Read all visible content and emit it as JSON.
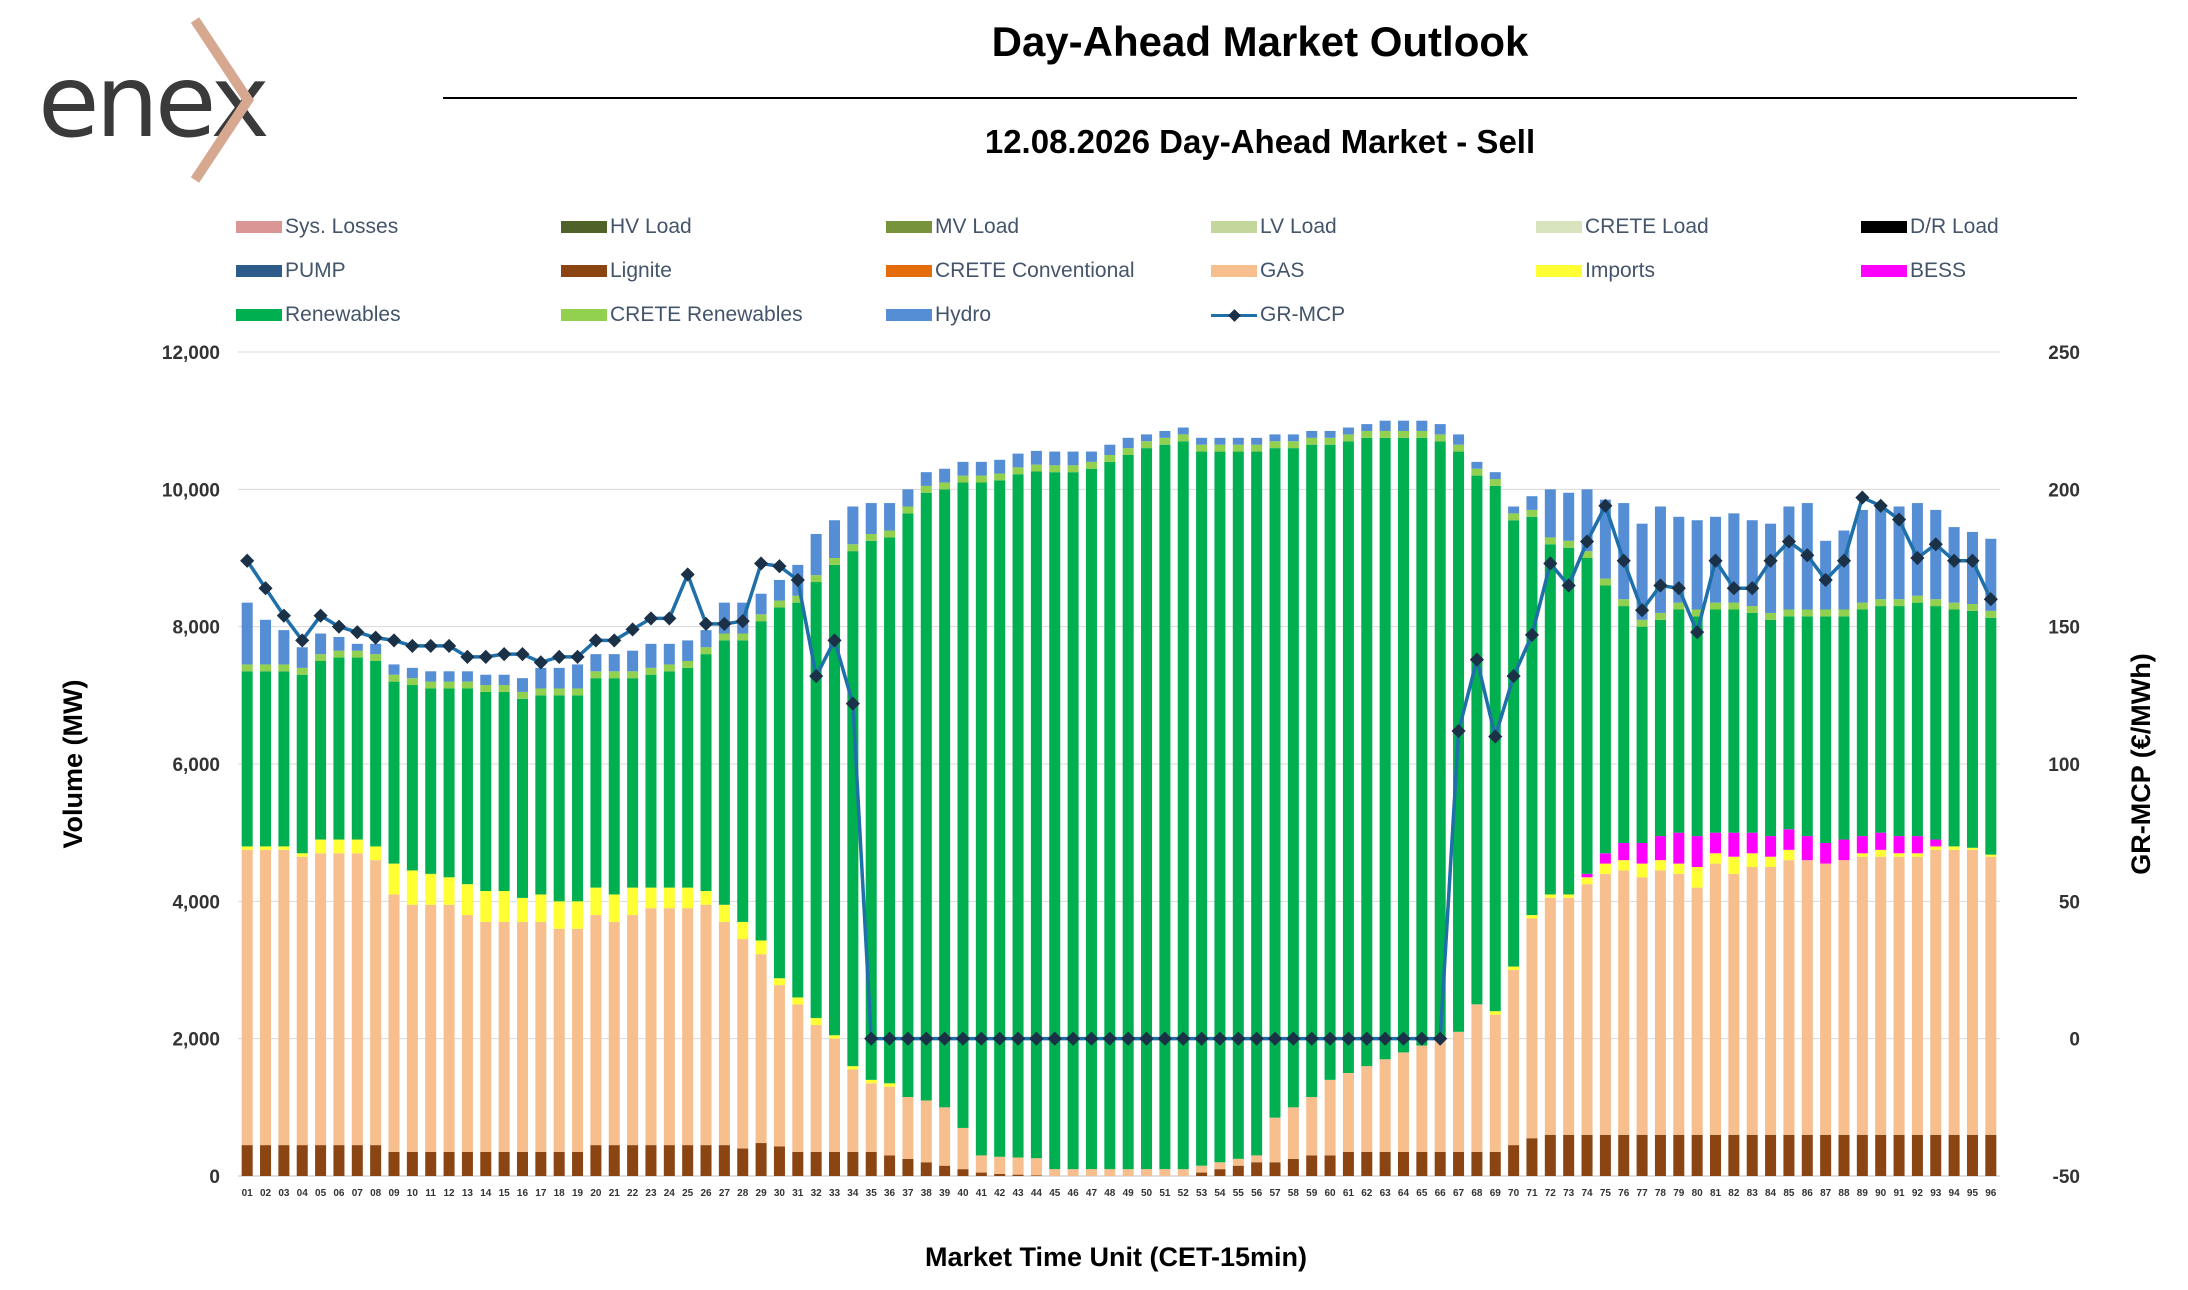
{
  "header": {
    "logo_text": "enex",
    "title": "Day-Ahead Market Outlook",
    "subtitle": "12.08.2026  Day-Ahead Market - Sell"
  },
  "chart_data": {
    "type": "bar",
    "stacked": true,
    "title": "12.08.2026  Day-Ahead Market - Sell",
    "xlabel": "Market Time Unit (CET-15min)",
    "ylabel": "Volume (MW)",
    "y2label": "GR-MCP (€/MWh)",
    "ylim": [
      0,
      12000
    ],
    "y2lim": [
      -50,
      250
    ],
    "yticks": [
      "0",
      "2,000",
      "4,000",
      "6,000",
      "8,000",
      "10,000",
      "12,000"
    ],
    "y2ticks": [
      "-50",
      "0",
      "50",
      "100",
      "150",
      "200",
      "250"
    ],
    "grid": "horizontal",
    "legend_position": "top",
    "categories": [
      "01",
      "02",
      "03",
      "04",
      "05",
      "06",
      "07",
      "08",
      "09",
      "10",
      "11",
      "12",
      "13",
      "14",
      "15",
      "16",
      "17",
      "18",
      "19",
      "20",
      "21",
      "22",
      "23",
      "24",
      "25",
      "26",
      "27",
      "28",
      "29",
      "30",
      "31",
      "32",
      "33",
      "34",
      "35",
      "36",
      "37",
      "38",
      "39",
      "40",
      "41",
      "42",
      "43",
      "44",
      "45",
      "46",
      "47",
      "48",
      "49",
      "50",
      "51",
      "52",
      "53",
      "54",
      "55",
      "56",
      "57",
      "58",
      "59",
      "60",
      "61",
      "62",
      "63",
      "64",
      "65",
      "66",
      "67",
      "68",
      "69",
      "70",
      "71",
      "72",
      "73",
      "74",
      "75",
      "76",
      "77",
      "78",
      "79",
      "80",
      "81",
      "82",
      "83",
      "84",
      "85",
      "86",
      "87",
      "88",
      "89",
      "90",
      "91",
      "92",
      "93",
      "94",
      "95",
      "96"
    ],
    "legend": [
      {
        "name": "Sys. Losses",
        "color": "#d99694",
        "type": "bar"
      },
      {
        "name": "HV Load",
        "color": "#4f6228",
        "type": "bar"
      },
      {
        "name": "MV Load",
        "color": "#77933c",
        "type": "bar"
      },
      {
        "name": "LV Load",
        "color": "#c3d69b",
        "type": "bar"
      },
      {
        "name": "CRETE Load",
        "color": "#d7e4bd",
        "type": "bar"
      },
      {
        "name": "D/R Load",
        "color": "#000000",
        "type": "bar"
      },
      {
        "name": "PUMP",
        "color": "#2e5c8a",
        "type": "bar"
      },
      {
        "name": "Lignite",
        "color": "#8b4513",
        "type": "bar"
      },
      {
        "name": "CRETE Conventional",
        "color": "#e46c0a",
        "type": "bar"
      },
      {
        "name": "GAS",
        "color": "#f7be8e",
        "type": "bar"
      },
      {
        "name": "Imports",
        "color": "#ffff33",
        "type": "bar"
      },
      {
        "name": "BESS",
        "color": "#ff00ff",
        "type": "bar"
      },
      {
        "name": "Renewables",
        "color": "#00b050",
        "type": "bar"
      },
      {
        "name": "CRETE Renewables",
        "color": "#92d050",
        "type": "bar"
      },
      {
        "name": "Hydro",
        "color": "#558ed5",
        "type": "bar"
      },
      {
        "name": "GR-MCP",
        "color": "#1f6fa8",
        "type": "line"
      }
    ],
    "series": [
      {
        "name": "Lignite",
        "color": "#8b4513",
        "values": [
          450,
          450,
          450,
          450,
          450,
          450,
          450,
          450,
          350,
          350,
          350,
          350,
          350,
          350,
          350,
          350,
          350,
          350,
          350,
          450,
          450,
          450,
          450,
          450,
          450,
          450,
          450,
          400,
          480,
          430,
          350,
          350,
          350,
          350,
          350,
          300,
          250,
          200,
          150,
          100,
          50,
          30,
          20,
          10,
          0,
          0,
          0,
          0,
          0,
          0,
          0,
          0,
          50,
          100,
          150,
          200,
          200,
          250,
          300,
          300,
          350,
          350,
          350,
          350,
          350,
          350,
          350,
          350,
          350,
          450,
          550,
          600,
          600,
          600,
          600,
          600,
          600,
          600,
          600,
          600,
          600,
          600,
          600,
          600,
          600,
          600,
          600,
          600,
          600,
          600,
          600,
          600,
          600,
          600,
          600,
          600
        ]
      },
      {
        "name": "GAS",
        "color": "#f7be8e",
        "values": [
          4300,
          4300,
          4300,
          4200,
          4250,
          4250,
          4250,
          4150,
          3750,
          3600,
          3600,
          3600,
          3450,
          3350,
          3350,
          3350,
          3350,
          3250,
          3250,
          3350,
          3250,
          3350,
          3450,
          3450,
          3450,
          3500,
          3250,
          3050,
          2750,
          2350,
          2150,
          1850,
          1650,
          1200,
          1000,
          1000,
          900,
          900,
          850,
          600,
          250,
          250,
          250,
          250,
          100,
          100,
          100,
          100,
          100,
          100,
          100,
          100,
          100,
          100,
          100,
          100,
          650,
          750,
          850,
          1100,
          1150,
          1250,
          1350,
          1450,
          1550,
          1650,
          1750,
          2150,
          2000,
          2550,
          3200,
          3450,
          3450,
          3650,
          3800,
          3850,
          3750,
          3850,
          3800,
          3600,
          3950,
          3800,
          3900,
          3900,
          4000,
          4000,
          3950,
          4000,
          4050,
          4050,
          4050,
          4050,
          4150,
          4150,
          4150,
          4050
        ]
      },
      {
        "name": "Imports",
        "color": "#ffff33",
        "values": [
          50,
          50,
          50,
          50,
          200,
          200,
          200,
          200,
          450,
          500,
          450,
          400,
          450,
          450,
          450,
          350,
          400,
          400,
          400,
          400,
          400,
          400,
          300,
          300,
          300,
          200,
          250,
          250,
          200,
          100,
          100,
          100,
          50,
          50,
          50,
          50,
          0,
          0,
          0,
          0,
          0,
          0,
          0,
          0,
          0,
          0,
          0,
          0,
          0,
          0,
          0,
          0,
          0,
          0,
          0,
          0,
          0,
          0,
          0,
          0,
          0,
          0,
          0,
          0,
          0,
          0,
          0,
          0,
          50,
          50,
          50,
          50,
          50,
          100,
          150,
          150,
          200,
          150,
          150,
          300,
          150,
          250,
          200,
          150,
          150,
          0,
          0,
          0,
          50,
          100,
          50,
          50,
          50,
          50,
          30,
          30
        ]
      },
      {
        "name": "BESS",
        "color": "#ff00ff",
        "values": [
          0,
          0,
          0,
          0,
          0,
          0,
          0,
          0,
          0,
          0,
          0,
          0,
          0,
          0,
          0,
          0,
          0,
          0,
          0,
          0,
          0,
          0,
          0,
          0,
          0,
          0,
          0,
          0,
          0,
          0,
          0,
          0,
          0,
          0,
          0,
          0,
          0,
          0,
          0,
          0,
          0,
          0,
          0,
          0,
          0,
          0,
          0,
          0,
          0,
          0,
          0,
          0,
          0,
          0,
          0,
          0,
          0,
          0,
          0,
          0,
          0,
          0,
          0,
          0,
          0,
          0,
          0,
          0,
          0,
          0,
          0,
          0,
          0,
          50,
          150,
          250,
          300,
          350,
          450,
          450,
          300,
          350,
          300,
          300,
          300,
          350,
          300,
          300,
          250,
          250,
          250,
          250,
          100,
          0,
          0,
          0
        ]
      },
      {
        "name": "Renewables",
        "color": "#00b050",
        "values": [
          2550,
          2550,
          2550,
          2600,
          2600,
          2650,
          2650,
          2700,
          2650,
          2700,
          2700,
          2750,
          2850,
          2900,
          2900,
          2900,
          2900,
          3000,
          3000,
          3050,
          3150,
          3050,
          3100,
          3150,
          3200,
          3450,
          3850,
          4100,
          4650,
          5400,
          5750,
          6350,
          6850,
          7500,
          7850,
          7950,
          8500,
          8850,
          9000,
          9400,
          9800,
          9850,
          9950,
          10000,
          10150,
          10150,
          10200,
          10300,
          10400,
          10500,
          10550,
          10600,
          10400,
          10350,
          10300,
          10250,
          9750,
          9600,
          9500,
          9250,
          9200,
          9150,
          9050,
          8950,
          8850,
          8700,
          8450,
          7700,
          7650,
          6500,
          5800,
          5100,
          5050,
          4600,
          3900,
          3450,
          3150,
          3150,
          3250,
          3200,
          3250,
          3250,
          3200,
          3150,
          3100,
          3200,
          3300,
          3250,
          3300,
          3300,
          3350,
          3400,
          3400,
          3450,
          3450,
          3450
        ]
      },
      {
        "name": "CRETE Renewables",
        "color": "#92d050",
        "values": [
          100,
          100,
          100,
          100,
          100,
          100,
          100,
          100,
          100,
          100,
          100,
          100,
          100,
          100,
          100,
          100,
          100,
          100,
          100,
          100,
          100,
          100,
          100,
          100,
          100,
          100,
          100,
          100,
          100,
          100,
          100,
          100,
          100,
          100,
          100,
          100,
          100,
          100,
          100,
          100,
          100,
          100,
          100,
          100,
          100,
          100,
          100,
          100,
          100,
          100,
          100,
          100,
          100,
          100,
          100,
          100,
          100,
          100,
          100,
          100,
          100,
          100,
          100,
          100,
          100,
          100,
          100,
          100,
          100,
          100,
          100,
          100,
          100,
          100,
          100,
          100,
          100,
          100,
          100,
          100,
          100,
          100,
          100,
          100,
          100,
          100,
          100,
          100,
          100,
          100,
          100,
          100,
          100,
          100,
          100,
          100
        ]
      },
      {
        "name": "CRETE Conventional",
        "color": "#e46c0a",
        "values": [
          0,
          0,
          0,
          0,
          0,
          0,
          0,
          0,
          0,
          0,
          0,
          0,
          0,
          0,
          0,
          0,
          0,
          0,
          0,
          0,
          0,
          0,
          0,
          0,
          0,
          0,
          0,
          0,
          0,
          0,
          0,
          0,
          0,
          0,
          0,
          0,
          0,
          0,
          0,
          0,
          0,
          0,
          0,
          0,
          0,
          0,
          0,
          0,
          0,
          0,
          0,
          0,
          0,
          0,
          0,
          0,
          0,
          0,
          0,
          0,
          0,
          0,
          0,
          0,
          0,
          0,
          0,
          0,
          0,
          0,
          0,
          0,
          0,
          0,
          0,
          0,
          0,
          0,
          0,
          0,
          0,
          0,
          0,
          0,
          0,
          0,
          0,
          0,
          0,
          0,
          0,
          0,
          0,
          0,
          0,
          0
        ]
      },
      {
        "name": "Hydro",
        "color": "#558ed5",
        "values": [
          900,
          650,
          500,
          300,
          300,
          200,
          100,
          150,
          150,
          150,
          150,
          150,
          150,
          150,
          150,
          200,
          300,
          300,
          350,
          250,
          250,
          300,
          350,
          300,
          300,
          250,
          450,
          450,
          300,
          300,
          450,
          600,
          550,
          550,
          450,
          400,
          250,
          200,
          200,
          200,
          200,
          200,
          200,
          200,
          200,
          200,
          150,
          150,
          150,
          100,
          100,
          100,
          100,
          100,
          100,
          100,
          100,
          100,
          100,
          100,
          100,
          100,
          150,
          150,
          150,
          150,
          150,
          100,
          100,
          100,
          200,
          700,
          700,
          900,
          1150,
          1400,
          1400,
          1550,
          1250,
          1300,
          1250,
          1300,
          1250,
          1300,
          1500,
          1550,
          1000,
          1150,
          1350,
          1350,
          1350,
          1350,
          1300,
          1100,
          1050,
          1050
        ]
      },
      {
        "name": "GR-MCP",
        "color": "#1f6fa8",
        "axis": "right",
        "values": [
          174,
          164,
          154,
          145,
          154,
          150,
          148,
          146,
          145,
          143,
          143,
          143,
          139,
          139,
          140,
          140,
          137,
          139,
          139,
          145,
          145,
          149,
          153,
          153,
          169,
          151,
          151,
          152,
          173,
          172,
          167,
          132,
          145,
          122,
          0,
          0,
          0,
          0,
          0,
          0,
          0,
          0,
          0,
          0,
          0,
          0,
          0,
          0,
          0,
          0,
          0,
          0,
          0,
          0,
          0,
          0,
          0,
          0,
          0,
          0,
          0,
          0,
          0,
          0,
          0,
          0,
          112,
          138,
          110,
          132,
          147,
          173,
          165,
          181,
          194,
          174,
          156,
          165,
          164,
          148,
          174,
          164,
          164,
          174,
          181,
          176,
          167,
          174,
          197,
          194,
          189,
          175,
          180,
          174,
          174,
          160
        ]
      }
    ]
  }
}
